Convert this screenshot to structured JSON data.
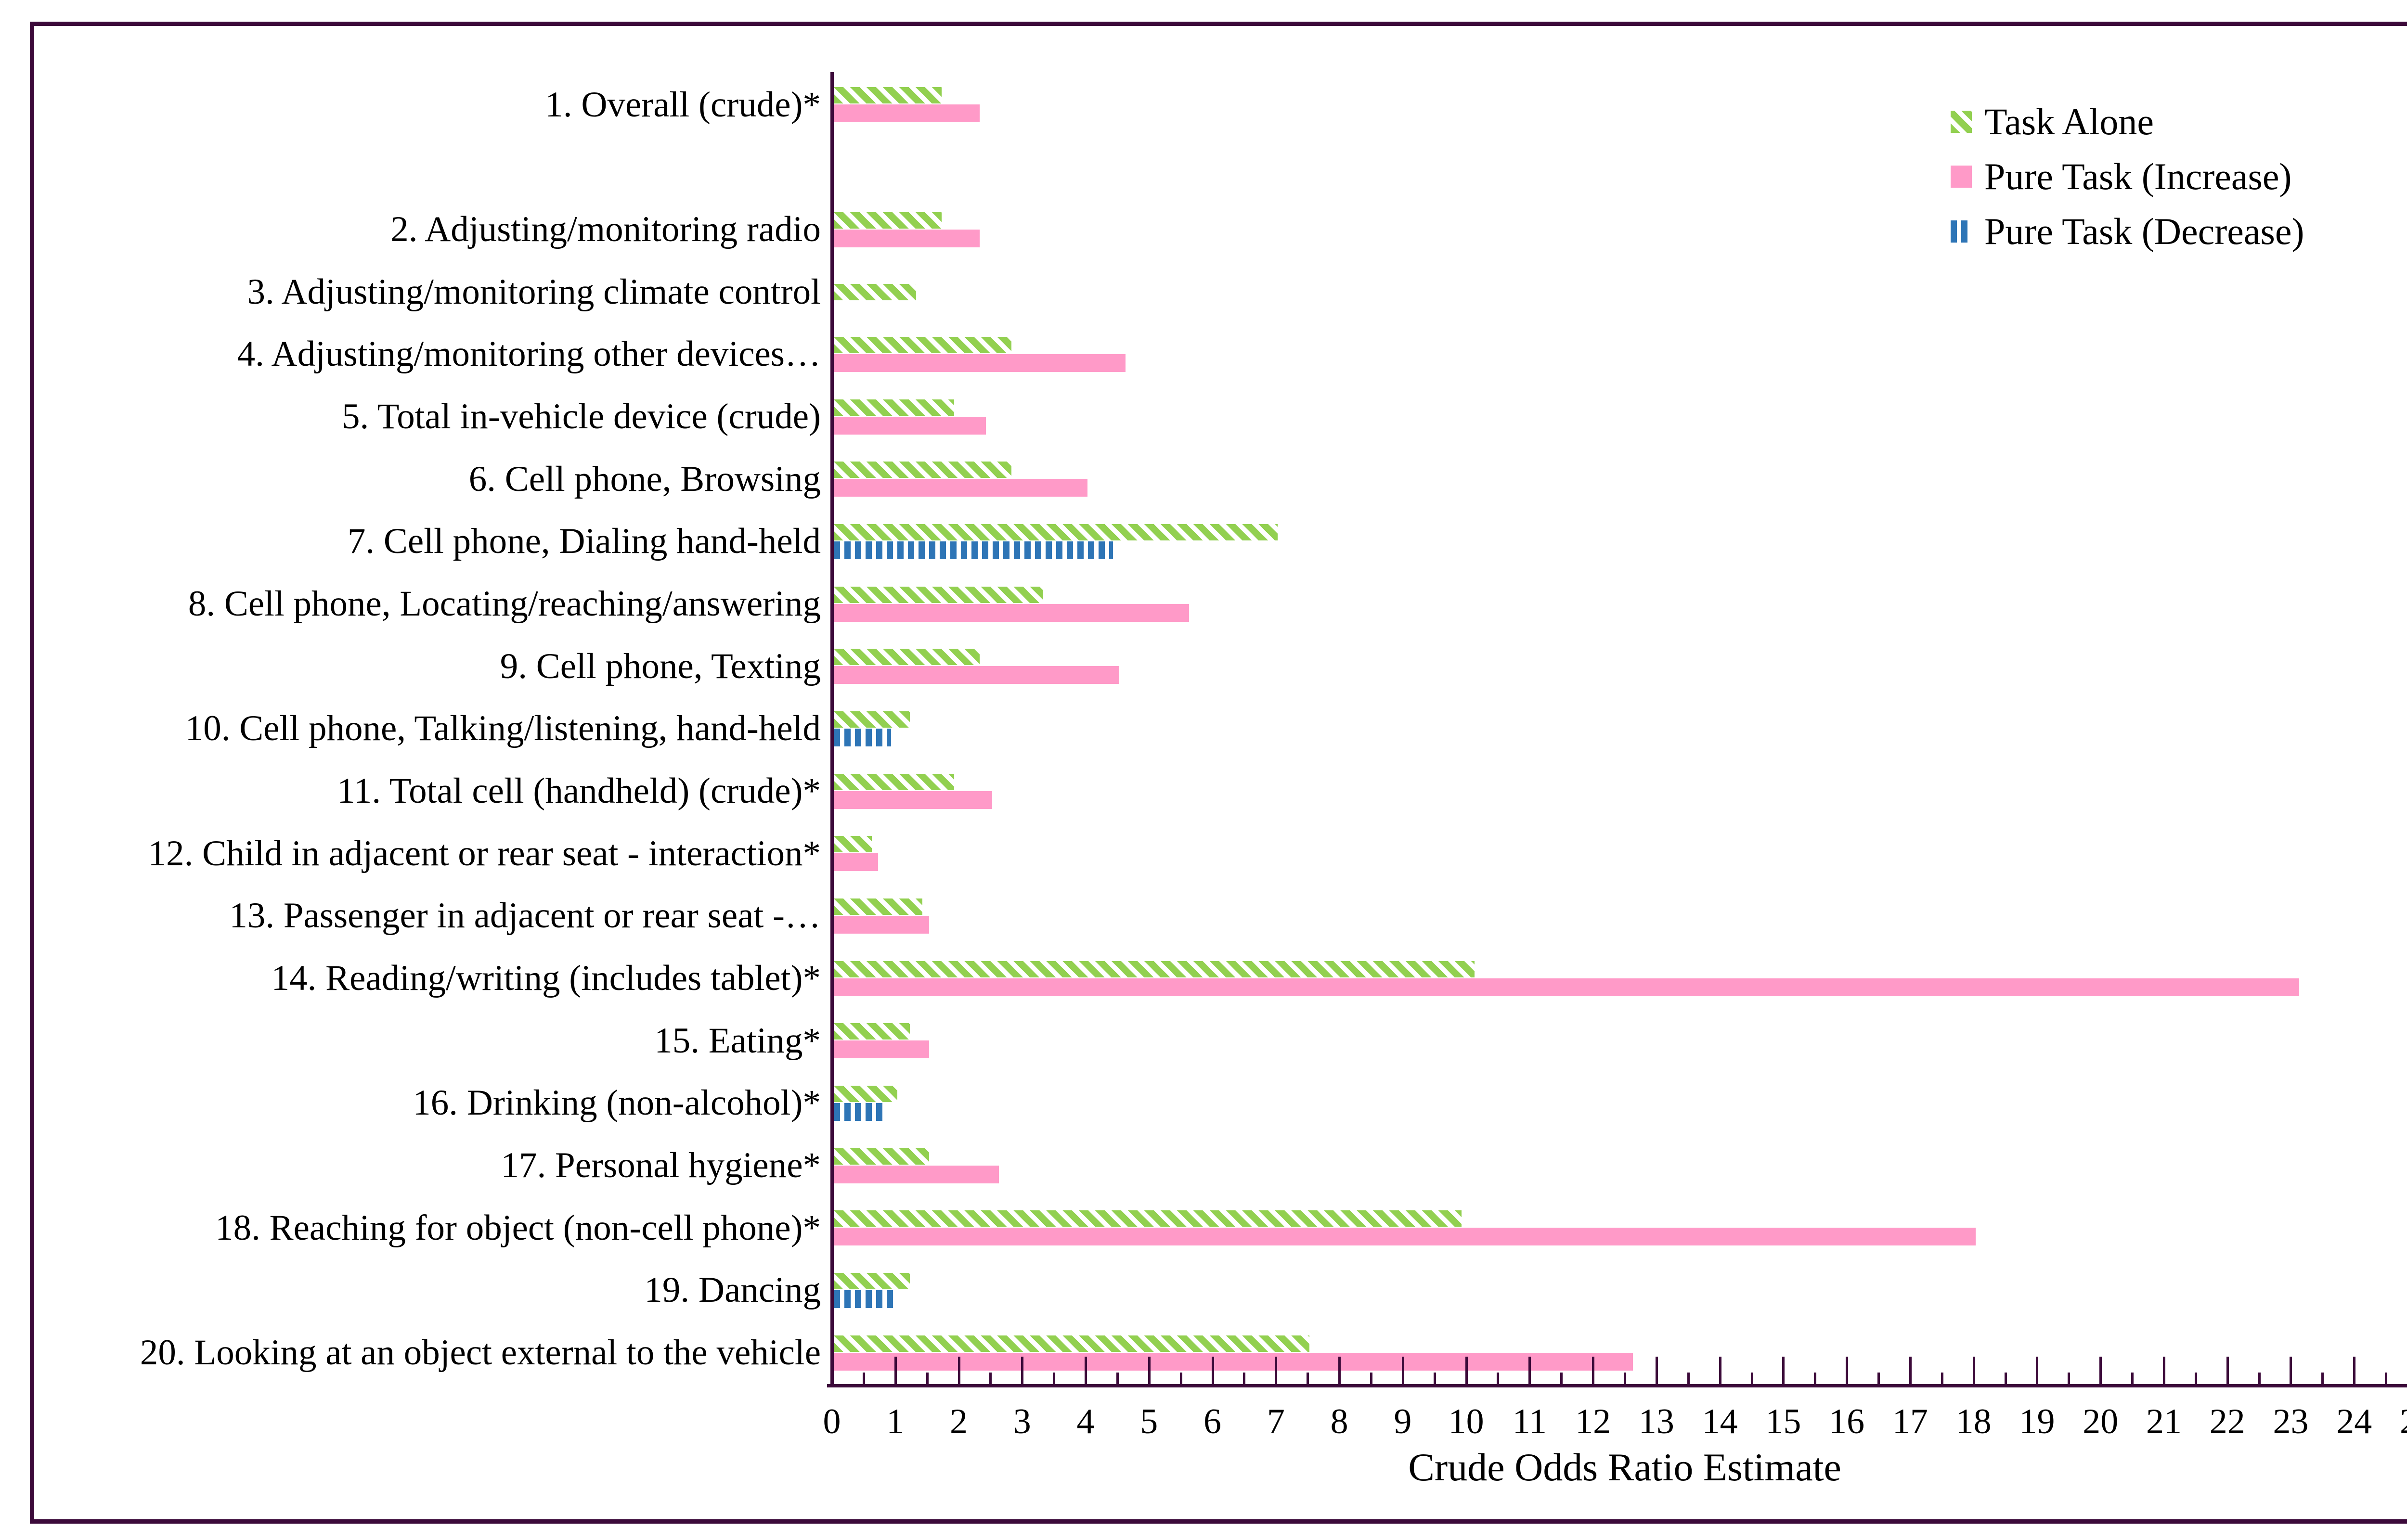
{
  "chart_data": {
    "type": "bar",
    "orientation": "horizontal",
    "title": "",
    "xlabel": "Crude Odds Ratio Estimate",
    "ylabel": "",
    "xlim": [
      0,
      25
    ],
    "x_major_tick": 1,
    "x_minor_tick": 0.5,
    "grid": false,
    "legend_position": "top-right",
    "blank_row_after_first_category": true,
    "frame_color": "#3c0a3a",
    "axis_color": "#3c0a3a",
    "categories": [
      "1. Overall (crude)*",
      "2. Adjusting/monitoring radio",
      "3. Adjusting/monitoring climate control",
      "4. Adjusting/monitoring other devices…",
      "5. Total in-vehicle device (crude)",
      "6. Cell phone, Browsing",
      "7. Cell phone, Dialing hand-held",
      "8. Cell phone, Locating/reaching/answering",
      "9. Cell phone, Texting",
      "10. Cell phone, Talking/listening, hand-held",
      "11. Total cell (handheld) (crude)*",
      "12. Child in adjacent or rear seat - interaction*",
      "13. Passenger in adjacent or rear seat -…",
      "14. Reading/writing (includes tablet)*",
      "15. Eating*",
      "16. Drinking (non-alcohol)*",
      "17. Personal hygiene*",
      "18. Reaching for object (non-cell phone)*",
      "19. Dancing",
      "20. Looking at an object external to the vehicle"
    ],
    "series": [
      {
        "name": "Task Alone",
        "pattern": "diagonal-stripes",
        "color": "#92d050",
        "values": [
          1.7,
          1.7,
          1.3,
          2.8,
          1.9,
          2.8,
          7.0,
          3.3,
          2.3,
          1.2,
          1.9,
          0.6,
          1.4,
          10.1,
          1.2,
          1.0,
          1.5,
          9.9,
          1.2,
          7.5
        ]
      },
      {
        "name": "Pure Task (Increase)",
        "pattern": "solid",
        "color": "#ff9ac8",
        "values": [
          2.3,
          2.3,
          null,
          4.6,
          2.4,
          4.0,
          null,
          5.6,
          4.5,
          null,
          2.5,
          0.7,
          1.5,
          23.1,
          1.5,
          null,
          2.6,
          18.0,
          null,
          12.6
        ]
      },
      {
        "name": "Pure Task (Decrease)",
        "pattern": "vertical-stripes",
        "color": "#2e75b6",
        "values": [
          null,
          null,
          null,
          null,
          null,
          null,
          4.4,
          null,
          null,
          0.9,
          null,
          null,
          null,
          null,
          null,
          0.8,
          null,
          null,
          1.0,
          null
        ]
      }
    ]
  }
}
